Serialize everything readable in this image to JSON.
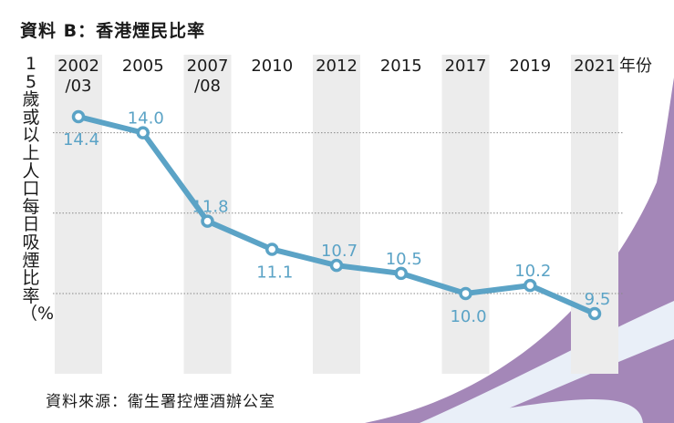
{
  "title": "資料 B：香港煙民比率",
  "source": "資料來源：衞生署控煙酒辦公室",
  "colors": {
    "line": "#5ba3c6",
    "band": "#ececec",
    "gridline": "#888888",
    "accent_purple": "#a487b8",
    "accent_light": "#e9eff8"
  },
  "chart_data": {
    "type": "line",
    "title": "資料 B：香港煙民比率",
    "ylabel": "15歲或以上人口每日吸煙比率（%）",
    "x_unit_label": "年份",
    "categories": [
      "2002/03",
      "2005",
      "2007/08",
      "2010",
      "2012",
      "2015",
      "2017",
      "2019",
      "2021"
    ],
    "category_lines": [
      [
        "2002",
        "/03"
      ],
      [
        "2005"
      ],
      [
        "2007",
        "/08"
      ],
      [
        "2010"
      ],
      [
        "2012"
      ],
      [
        "2015"
      ],
      [
        "2017"
      ],
      [
        "2019"
      ],
      [
        "2021"
      ]
    ],
    "values": [
      14.4,
      14.0,
      11.8,
      11.1,
      10.7,
      10.5,
      10.0,
      10.2,
      9.5
    ],
    "label_position": [
      "below",
      "above",
      "above",
      "below",
      "above",
      "above",
      "below",
      "above",
      "above"
    ],
    "ylim": [
      8.0,
      15.0
    ],
    "gridlines": [
      12.0,
      14.0,
      10.0
    ],
    "grid": true,
    "legend": "none"
  }
}
